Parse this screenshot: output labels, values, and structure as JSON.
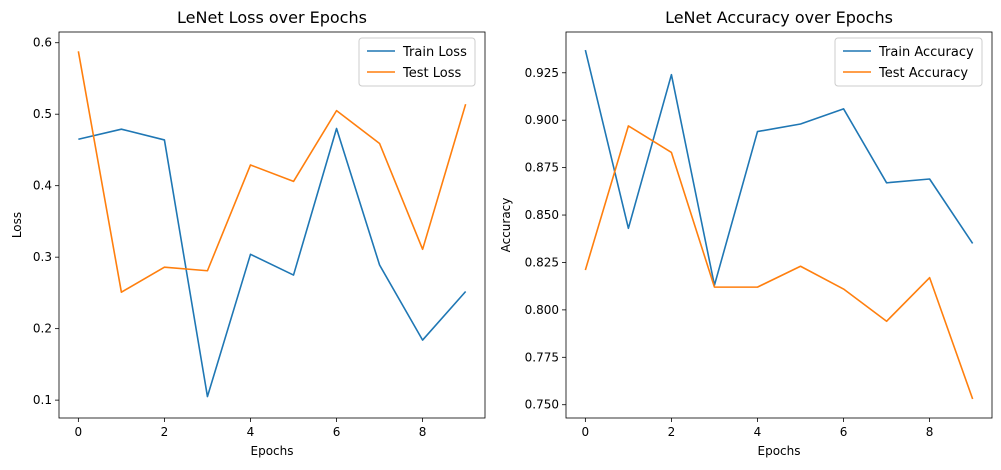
{
  "chart_data": [
    {
      "type": "line",
      "title": "LeNet Loss over Epochs",
      "xlabel": "Epochs",
      "ylabel": "Loss",
      "x": [
        0,
        1,
        2,
        3,
        4,
        5,
        6,
        7,
        8,
        9
      ],
      "xlim": [
        -0.45,
        9.45
      ],
      "ylim": [
        0.075,
        0.615
      ],
      "xticks": [
        0,
        2,
        4,
        6,
        8
      ],
      "yticks": [
        0.1,
        0.2,
        0.3,
        0.4,
        0.5,
        0.6
      ],
      "grid": false,
      "legend_position": "top-right",
      "series": [
        {
          "name": "Train Loss",
          "color": "#1f77b4",
          "values": [
            0.465,
            0.479,
            0.464,
            0.105,
            0.304,
            0.275,
            0.48,
            0.289,
            0.184,
            0.252
          ]
        },
        {
          "name": "Test Loss",
          "color": "#ff7f0e",
          "values": [
            0.588,
            0.251,
            0.286,
            0.281,
            0.429,
            0.406,
            0.505,
            0.459,
            0.311,
            0.514
          ]
        }
      ]
    },
    {
      "type": "line",
      "title": "LeNet Accuracy over Epochs",
      "xlabel": "Epochs",
      "ylabel": "Accuracy",
      "x": [
        0,
        1,
        2,
        3,
        4,
        5,
        6,
        7,
        8,
        9
      ],
      "xlim": [
        -0.45,
        9.45
      ],
      "ylim": [
        0.743,
        0.9465
      ],
      "xticks": [
        0,
        2,
        4,
        6,
        8
      ],
      "yticks": [
        0.75,
        0.775,
        0.8,
        0.825,
        0.85,
        0.875,
        0.9,
        0.925
      ],
      "grid": false,
      "legend_position": "top-right",
      "series": [
        {
          "name": "Train Accuracy",
          "color": "#1f77b4",
          "values": [
            0.937,
            0.843,
            0.924,
            0.813,
            0.894,
            0.898,
            0.906,
            0.867,
            0.869,
            0.835
          ]
        },
        {
          "name": "Test Accuracy",
          "color": "#ff7f0e",
          "values": [
            0.821,
            0.897,
            0.883,
            0.812,
            0.812,
            0.823,
            0.811,
            0.794,
            0.817,
            0.753
          ]
        }
      ]
    }
  ]
}
